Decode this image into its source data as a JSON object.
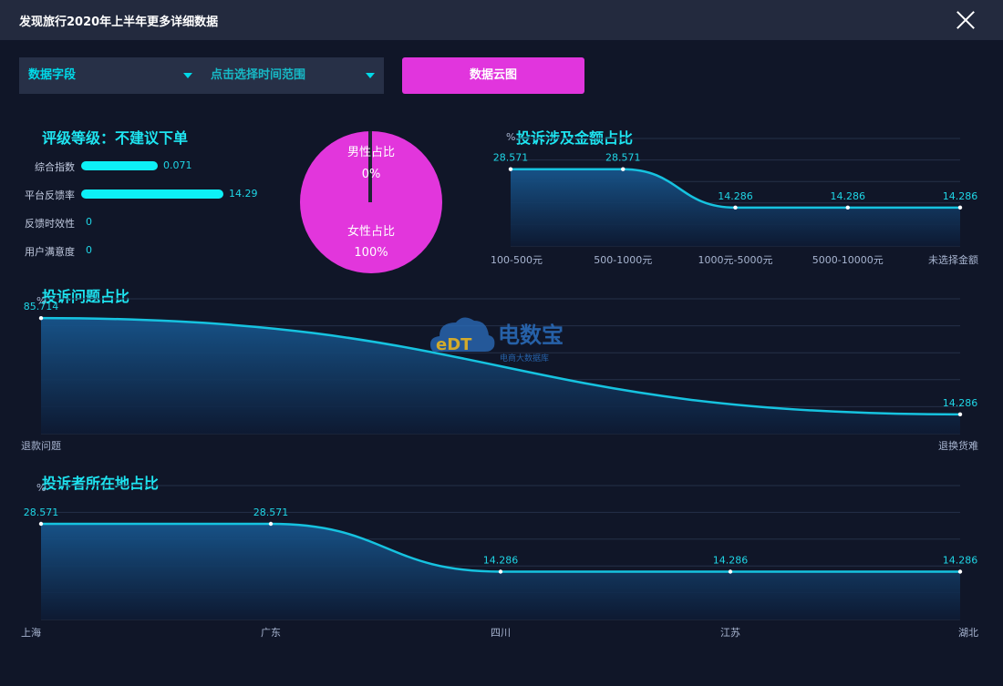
{
  "window": {
    "title": "发现旅行2020年上半年更多详细数据",
    "close_icon": "close-icon"
  },
  "filters": {
    "field_label": "数据字段",
    "time_label": "点击选择时间范围",
    "cloud_button": "数据云图"
  },
  "rating": {
    "title": "评级等级：不建议下单",
    "metrics": [
      {
        "label": "综合指数",
        "value": "0.071",
        "level": 0.54
      },
      {
        "label": "平台反馈率",
        "value": "14.29",
        "level": 1.0
      },
      {
        "label": "反馈时效性",
        "value": "0",
        "level": 0
      },
      {
        "label": "用户满意度",
        "value": "0",
        "level": 0
      }
    ]
  },
  "gender": {
    "male_label": "男性占比",
    "male_value": "0%",
    "female_label": "女性占比",
    "female_value": "100%",
    "colors": {
      "female": "#e236dc",
      "male": "#1f2533"
    }
  },
  "watermark": {
    "name": "电数宝",
    "subtitle": "电商大数据库",
    "logo": "eDT"
  },
  "chart_data": [
    {
      "id": "amount",
      "type": "area",
      "title": "投诉涉及金额占比",
      "unit": "%",
      "categories": [
        "100-500元",
        "500-1000元",
        "1000元-5000元",
        "5000-10000元",
        "未选择金额"
      ],
      "values": [
        28.571,
        28.571,
        14.286,
        14.286,
        14.286
      ],
      "labels": [
        "28.571",
        "28.571",
        "14.286",
        "14.286",
        "14.286"
      ],
      "ylim": [
        0,
        40
      ],
      "grid": true
    },
    {
      "id": "issue",
      "type": "area",
      "title": "投诉问题占比",
      "unit": "%",
      "categories": [
        "退款问题",
        "退换货难"
      ],
      "values": [
        85.714,
        14.286
      ],
      "labels": [
        "85.714",
        "14.286"
      ],
      "ylim": [
        0,
        100
      ],
      "grid": true
    },
    {
      "id": "region",
      "type": "area",
      "title": "投诉者所在地占比",
      "unit": "%",
      "categories": [
        "上海",
        "广东",
        "四川",
        "江苏",
        "湖北"
      ],
      "values": [
        28.571,
        28.571,
        14.286,
        14.286,
        14.286
      ],
      "labels": [
        "28.571",
        "28.571",
        "14.286",
        "14.286",
        "14.286"
      ],
      "ylim": [
        0,
        40
      ],
      "grid": true
    }
  ]
}
